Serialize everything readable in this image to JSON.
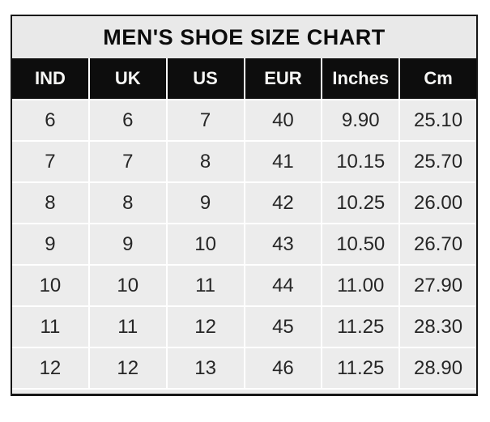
{
  "chart_data": {
    "type": "table",
    "title": "MEN'S SHOE SIZE CHART",
    "columns": [
      "IND",
      "UK",
      "US",
      "EUR",
      "Inches",
      "Cm"
    ],
    "rows": [
      [
        "6",
        "6",
        "7",
        "40",
        "9.90",
        "25.10"
      ],
      [
        "7",
        "7",
        "8",
        "41",
        "10.15",
        "25.70"
      ],
      [
        "8",
        "8",
        "9",
        "42",
        "10.25",
        "26.00"
      ],
      [
        "9",
        "9",
        "10",
        "43",
        "10.50",
        "26.70"
      ],
      [
        "10",
        "10",
        "11",
        "44",
        "11.00",
        "27.90"
      ],
      [
        "11",
        "11",
        "12",
        "45",
        "11.25",
        "28.30"
      ],
      [
        "12",
        "12",
        "13",
        "46",
        "11.25",
        "28.90"
      ]
    ],
    "layout": {
      "legend": "none",
      "grid": "white separators between gray cells",
      "header_style": "black background, white bold text"
    }
  },
  "colors": {
    "border": "#161616",
    "title_bg": "#e9e9e9",
    "header_bg": "#0d0d0d",
    "header_text": "#f7f7f5",
    "cell_bg": "#ececec",
    "separator": "#ffffff",
    "text": "#262626"
  }
}
